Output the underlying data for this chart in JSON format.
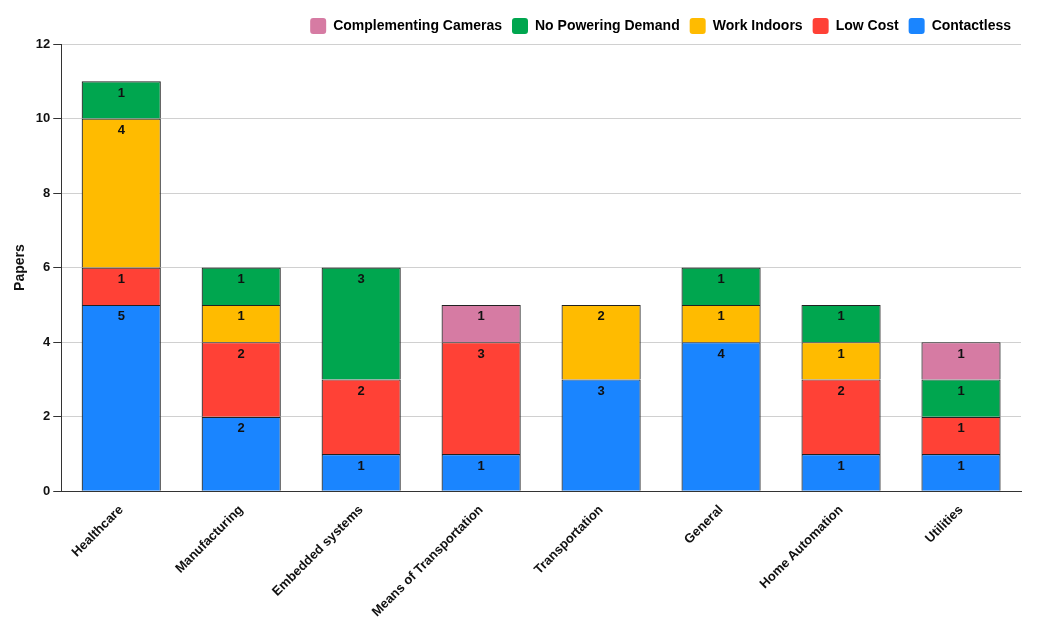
{
  "chart_data": {
    "type": "bar",
    "stacked": true,
    "ylabel": "Papers",
    "categories": [
      "Healthcare",
      "Manufacturing",
      "Embedded systems",
      "Means of Transportation",
      "Transportation",
      "General",
      "Home Automation",
      "Utilities"
    ],
    "series": [
      {
        "name": "Contactless",
        "color": "#1a85ff",
        "values": [
          5,
          2,
          1,
          1,
          3,
          4,
          1,
          1
        ]
      },
      {
        "name": "Low Cost",
        "color": "#ff4136",
        "values": [
          1,
          2,
          2,
          3,
          null,
          null,
          2,
          1
        ]
      },
      {
        "name": "Work Indoors",
        "color": "#ffbb00",
        "values": [
          4,
          1,
          null,
          null,
          2,
          1,
          1,
          null
        ]
      },
      {
        "name": "No Powering Demand",
        "color": "#00a64f",
        "values": [
          1,
          1,
          3,
          null,
          null,
          1,
          1,
          1
        ]
      },
      {
        "name": "Complementing Cameras",
        "color": "#d67ba3",
        "values": [
          null,
          null,
          null,
          1,
          null,
          null,
          null,
          1
        ]
      }
    ],
    "ylim": [
      0,
      12
    ],
    "yticks": [
      0,
      2,
      4,
      6,
      8,
      10,
      12
    ],
    "grid": "y",
    "legend": "top right",
    "data_labels": true
  }
}
